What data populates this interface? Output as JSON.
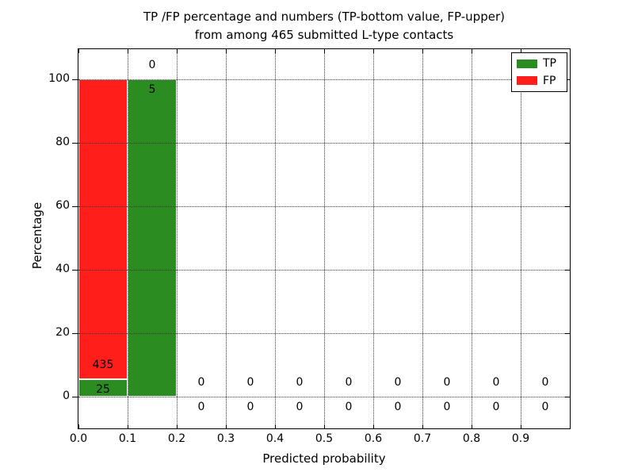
{
  "chart_data": {
    "type": "bar",
    "stacked": true,
    "title_line1": "TP /FP percentage and numbers (TP-bottom value, FP-upper)",
    "title_line2": "from among 465 submitted L-type contacts",
    "xlabel": "Predicted probability",
    "ylabel": "Percentage",
    "xlim": [
      0.0,
      1.0
    ],
    "ylim": [
      -10,
      110
    ],
    "x_tick_labels": [
      "0.0",
      "0.1",
      "0.2",
      "0.3",
      "0.4",
      "0.5",
      "0.6",
      "0.7",
      "0.8",
      "0.9"
    ],
    "x_tick_values": [
      0.0,
      0.1,
      0.2,
      0.3,
      0.4,
      0.5,
      0.6,
      0.7,
      0.8,
      0.9
    ],
    "y_tick_values": [
      0,
      20,
      40,
      60,
      80,
      100
    ],
    "grid_style": "dotted",
    "legend_position": "upper right",
    "total_submitted": 465,
    "series": [
      {
        "name": "TP",
        "color": "#2a8c21"
      },
      {
        "name": "FP",
        "color": "#ff1e1a"
      }
    ],
    "bins": [
      {
        "range": [
          0.0,
          0.1
        ],
        "tp_count": 25,
        "fp_count": 435,
        "tp_pct": 5.43,
        "fp_pct": 94.57
      },
      {
        "range": [
          0.1,
          0.2
        ],
        "tp_count": 5,
        "fp_count": 0,
        "tp_pct": 100,
        "fp_pct": 0
      },
      {
        "range": [
          0.2,
          0.3
        ],
        "tp_count": 0,
        "fp_count": 0,
        "tp_pct": 0,
        "fp_pct": 0
      },
      {
        "range": [
          0.3,
          0.4
        ],
        "tp_count": 0,
        "fp_count": 0,
        "tp_pct": 0,
        "fp_pct": 0
      },
      {
        "range": [
          0.4,
          0.5
        ],
        "tp_count": 0,
        "fp_count": 0,
        "tp_pct": 0,
        "fp_pct": 0
      },
      {
        "range": [
          0.5,
          0.6
        ],
        "tp_count": 0,
        "fp_count": 0,
        "tp_pct": 0,
        "fp_pct": 0
      },
      {
        "range": [
          0.6,
          0.7
        ],
        "tp_count": 0,
        "fp_count": 0,
        "tp_pct": 0,
        "fp_pct": 0
      },
      {
        "range": [
          0.7,
          0.8
        ],
        "tp_count": 0,
        "fp_count": 0,
        "tp_pct": 0,
        "fp_pct": 0
      },
      {
        "range": [
          0.8,
          0.9
        ],
        "tp_count": 0,
        "fp_count": 0,
        "tp_pct": 0,
        "fp_pct": 0
      },
      {
        "range": [
          0.9,
          1.0
        ],
        "tp_count": 0,
        "fp_count": 0,
        "tp_pct": 0,
        "fp_pct": 0
      }
    ]
  }
}
